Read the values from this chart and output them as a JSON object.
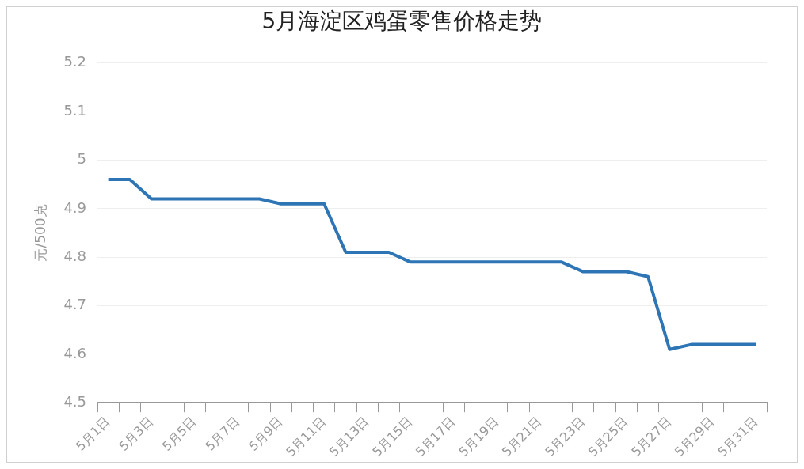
{
  "chart_data": {
    "type": "line",
    "title": "5月海淀区鸡蛋零售价格走势",
    "ylabel": "元/500克",
    "categories": [
      "5月1日",
      null,
      "5月3日",
      null,
      "5月5日",
      null,
      "5月7日",
      null,
      "5月9日",
      null,
      "5月11日",
      null,
      "5月13日",
      null,
      "5月15日",
      null,
      "5月17日",
      null,
      "5月19日",
      null,
      "5月21日",
      null,
      "5月23日",
      null,
      "5月25日",
      null,
      "5月27日",
      null,
      "5月29日",
      null,
      "5月31日"
    ],
    "series": [
      {
        "color": "#2e75b6",
        "values": [
          4.96,
          4.96,
          4.92,
          4.92,
          4.92,
          4.92,
          4.92,
          4.92,
          4.91,
          4.91,
          4.91,
          4.81,
          4.81,
          4.81,
          4.79,
          4.79,
          4.79,
          4.79,
          4.79,
          4.79,
          4.79,
          4.79,
          4.77,
          4.77,
          4.77,
          4.76,
          4.61,
          4.62,
          4.62,
          4.62,
          4.62
        ]
      }
    ],
    "ylim": [
      4.5,
      5.2
    ],
    "yticks": [
      4.5,
      4.6,
      4.7,
      4.8,
      4.9,
      5,
      5.1,
      5.2
    ],
    "grid": "y",
    "legend": false,
    "marker": "none",
    "line_style": "solid"
  }
}
